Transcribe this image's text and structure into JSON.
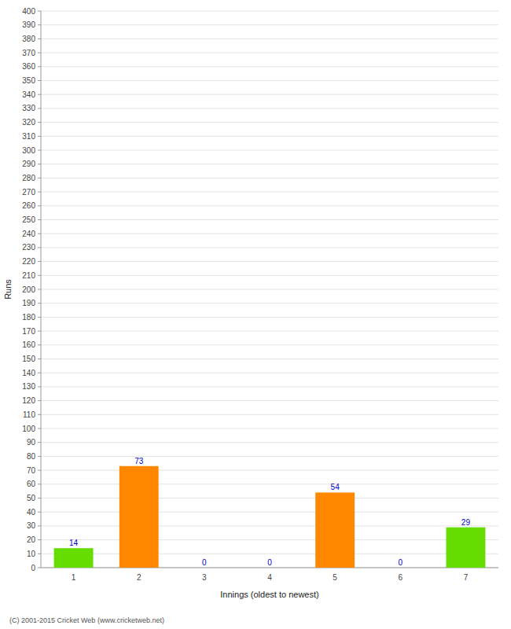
{
  "chart_data": {
    "type": "bar",
    "categories": [
      "1",
      "2",
      "3",
      "4",
      "5",
      "6",
      "7"
    ],
    "values": [
      14,
      73,
      0,
      0,
      54,
      0,
      29
    ],
    "colors": [
      "#66dd00",
      "#ff8800",
      "#ff8800",
      "#ff8800",
      "#ff8800",
      "#ff8800",
      "#66dd00"
    ],
    "xlabel": "Innings (oldest to newest)",
    "ylabel": "Runs",
    "ylim": [
      0,
      400
    ],
    "yticks": [
      0,
      10,
      20,
      30,
      40,
      50,
      60,
      70,
      80,
      90,
      100,
      110,
      120,
      130,
      140,
      150,
      160,
      170,
      180,
      190,
      200,
      210,
      220,
      230,
      240,
      250,
      260,
      270,
      280,
      290,
      300,
      310,
      320,
      330,
      340,
      350,
      360,
      370,
      380,
      390,
      400
    ],
    "grid": true,
    "data_labels": true,
    "annotations": [
      "(C) 2001-2015 Cricket Web (www.cricketweb.net)"
    ]
  }
}
